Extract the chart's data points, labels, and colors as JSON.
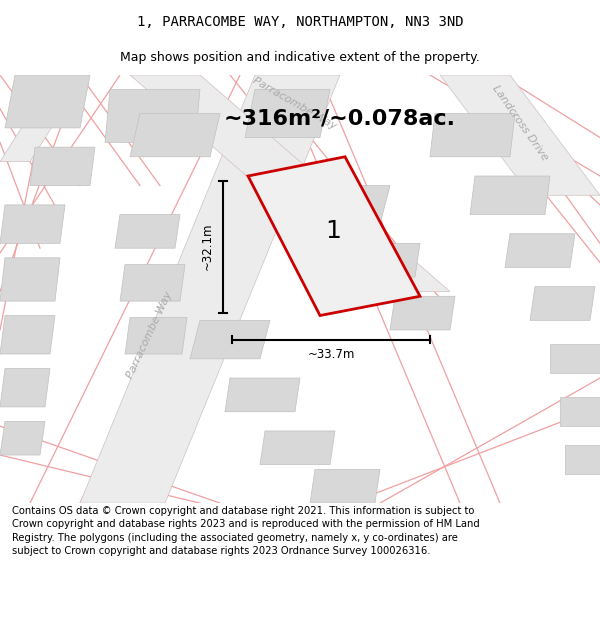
{
  "title": "1, PARRACOMBE WAY, NORTHAMPTON, NN3 3ND",
  "subtitle": "Map shows position and indicative extent of the property.",
  "area_text": "~316m²/~0.078ac.",
  "label_number": "1",
  "dim_width": "~33.7m",
  "dim_height": "~32.1m",
  "road_label_left": "Parracombe Way",
  "road_label_top": "Parracombe Way",
  "road_label_right": "Landcross Drive",
  "footer": "Contains OS data © Crown copyright and database right 2021. This information is subject to Crown copyright and database rights 2023 and is reproduced with the permission of HM Land Registry. The polygons (including the associated geometry, namely x, y co-ordinates) are subject to Crown copyright and database rights 2023 Ordnance Survey 100026316.",
  "map_bg": "#f0f0f0",
  "pink_road_color": "#f0a0a0",
  "plot_outline_color": "#cc0000",
  "plot_fill_color": "#e8e8e8",
  "bld_fill": "#d8d8d8",
  "bld_edge": "#c0c0c0",
  "road_fill": "#e8e8e8",
  "road_edge": "#d0c0c0",
  "text_color": "#000000",
  "title_fontsize": 10,
  "subtitle_fontsize": 9,
  "area_fontsize": 16,
  "footer_fontsize": 7.2,
  "road_label_color": "#aaaaaa",
  "road_label_fontsize": 8
}
